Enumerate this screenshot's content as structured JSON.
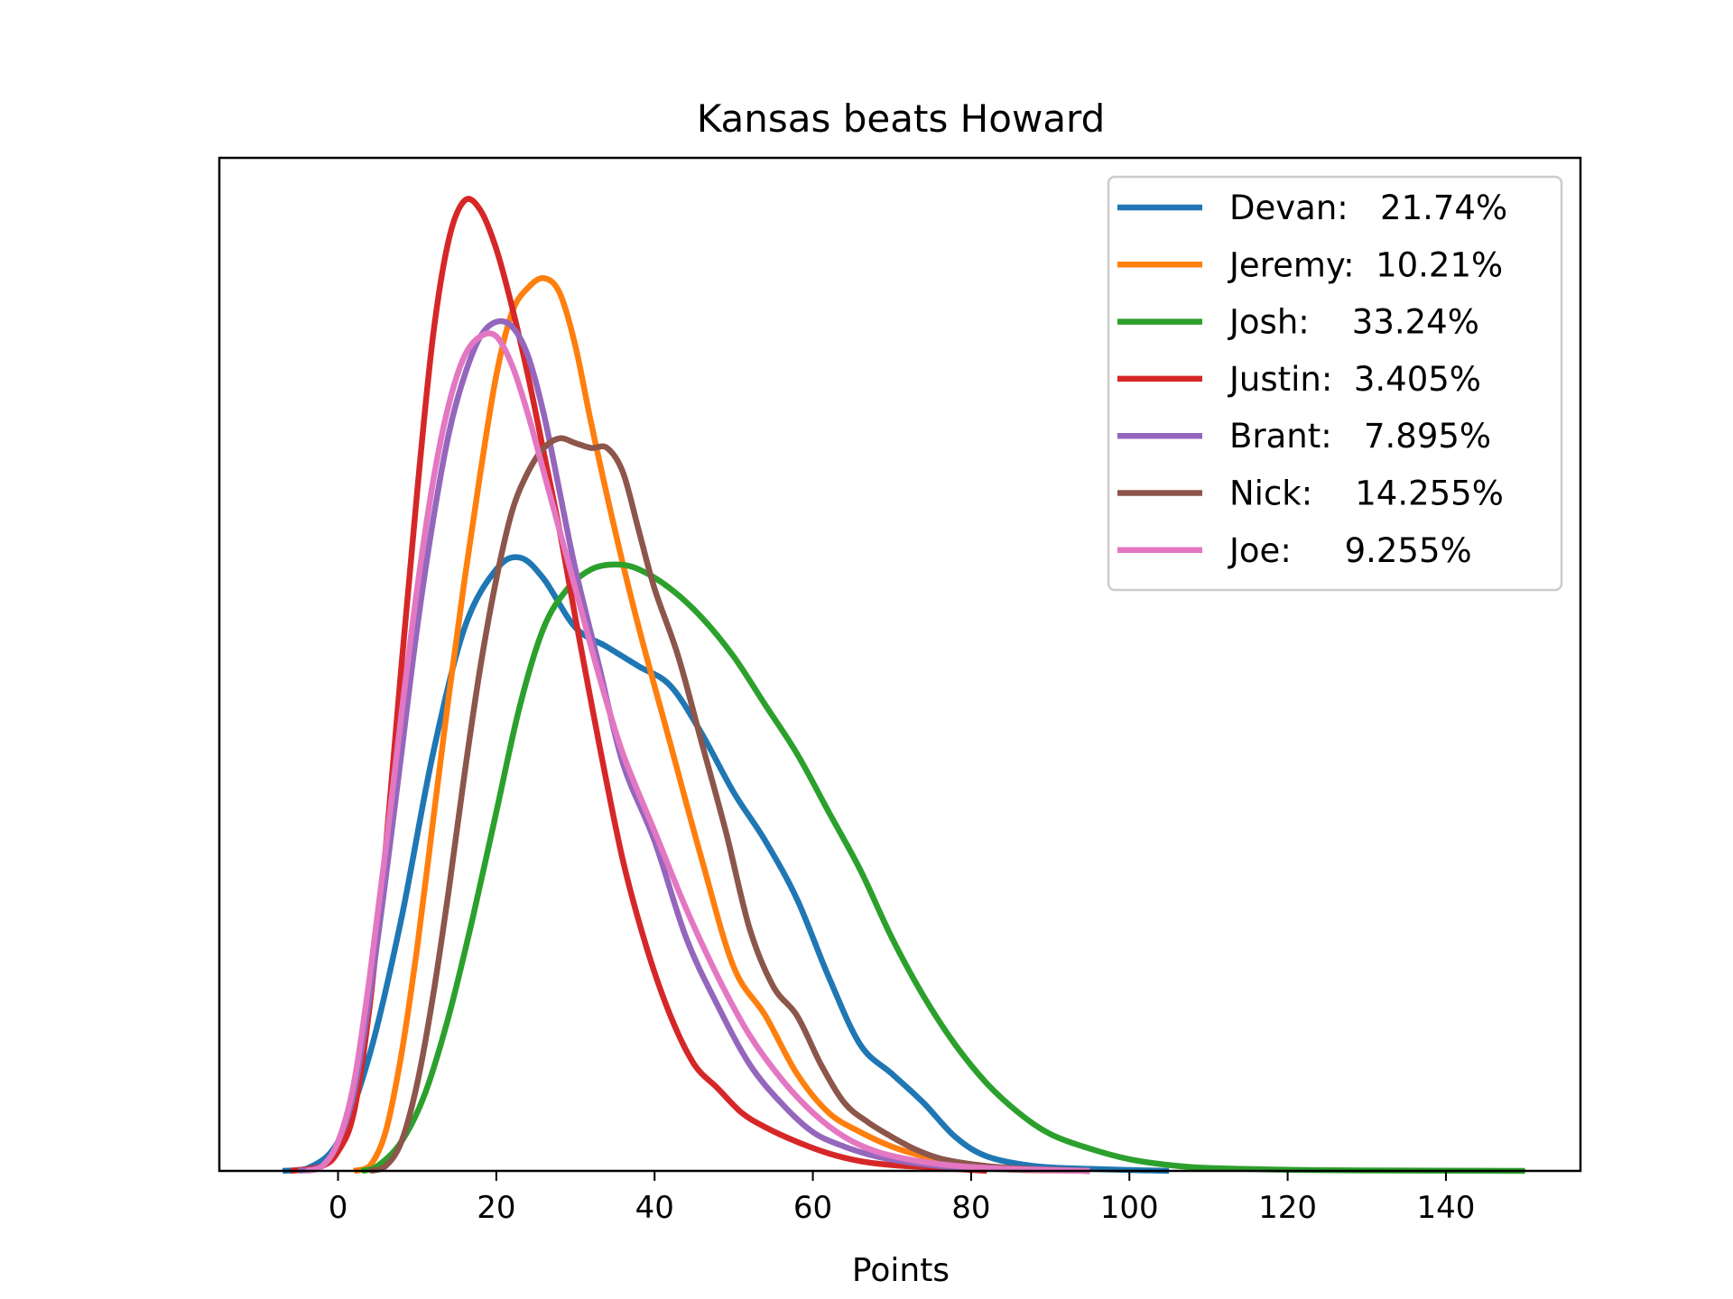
{
  "chart_data": {
    "type": "line",
    "title": "Kansas beats Howard",
    "xlabel": "Points",
    "ylabel": "",
    "xlim": [
      -15,
      157
    ],
    "ylim": [
      0,
      1.0
    ],
    "xticks": [
      0,
      20,
      40,
      60,
      80,
      100,
      120,
      140
    ],
    "yticks_shown": false,
    "grid": false,
    "legend_position": "top-right",
    "series": [
      {
        "name": "Devan:   21.74%",
        "color": "#1f77b4",
        "x": [
          -7,
          -4,
          0,
          4,
          8,
          12,
          16,
          20,
          23,
          26,
          30,
          34,
          38,
          42,
          46,
          50,
          54,
          58,
          62,
          66,
          70,
          74,
          78,
          82,
          88,
          95,
          105
        ],
        "y": [
          0.0,
          0.002,
          0.03,
          0.12,
          0.26,
          0.43,
          0.56,
          0.62,
          0.632,
          0.61,
          0.56,
          0.54,
          0.52,
          0.5,
          0.45,
          0.39,
          0.34,
          0.28,
          0.2,
          0.13,
          0.1,
          0.07,
          0.035,
          0.015,
          0.005,
          0.002,
          0.0
        ]
      },
      {
        "name": "Jeremy:  10.21%",
        "color": "#ff7f0e",
        "x": [
          2,
          4,
          6,
          8,
          10,
          12,
          14,
          16,
          18,
          20,
          22,
          24,
          26,
          28,
          30,
          32,
          35,
          38,
          42,
          46,
          50,
          54,
          58,
          62,
          66,
          70,
          74,
          78,
          82,
          86,
          90,
          95
        ],
        "y": [
          0.0,
          0.005,
          0.04,
          0.12,
          0.23,
          0.36,
          0.49,
          0.61,
          0.72,
          0.82,
          0.885,
          0.91,
          0.92,
          0.905,
          0.85,
          0.77,
          0.66,
          0.56,
          0.44,
          0.32,
          0.21,
          0.16,
          0.1,
          0.06,
          0.04,
          0.025,
          0.015,
          0.008,
          0.003,
          0.001,
          0.0005,
          0.0
        ]
      },
      {
        "name": "Josh:    33.24%",
        "color": "#2ca02c",
        "x": [
          3,
          5,
          8,
          11,
          14,
          17,
          20,
          23,
          26,
          29,
          32,
          35,
          38,
          42,
          46,
          50,
          54,
          58,
          62,
          66,
          70,
          74,
          78,
          82,
          86,
          90,
          95,
          100,
          105,
          110,
          120,
          130,
          150
        ],
        "y": [
          0.0,
          0.005,
          0.03,
          0.08,
          0.16,
          0.26,
          0.37,
          0.48,
          0.56,
          0.6,
          0.62,
          0.625,
          0.62,
          0.6,
          0.57,
          0.53,
          0.48,
          0.43,
          0.37,
          0.31,
          0.24,
          0.18,
          0.13,
          0.09,
          0.06,
          0.038,
          0.023,
          0.012,
          0.006,
          0.003,
          0.0012,
          0.0005,
          0.0
        ]
      },
      {
        "name": "Justin:  3.405%",
        "color": "#d62728",
        "x": [
          -6,
          -2,
          0,
          2,
          4,
          6,
          8,
          10,
          12,
          14,
          16,
          18,
          20,
          22,
          24,
          26,
          28,
          30,
          33,
          36,
          39,
          42,
          45,
          48,
          51,
          54,
          58,
          62,
          66,
          70,
          74,
          78,
          82
        ],
        "y": [
          0.0,
          0.005,
          0.02,
          0.06,
          0.17,
          0.33,
          0.52,
          0.7,
          0.86,
          0.96,
          1.0,
          0.99,
          0.95,
          0.89,
          0.82,
          0.74,
          0.66,
          0.57,
          0.44,
          0.32,
          0.23,
          0.16,
          0.11,
          0.085,
          0.06,
          0.045,
          0.03,
          0.018,
          0.01,
          0.006,
          0.004,
          0.002,
          0.0
        ]
      },
      {
        "name": "Brant:   7.895%",
        "color": "#9467bd",
        "x": [
          -5,
          -2,
          0,
          2,
          4,
          6,
          8,
          10,
          12,
          14,
          16,
          18,
          20,
          22,
          24,
          26,
          28,
          30,
          33,
          36,
          40,
          44,
          48,
          52,
          56,
          60,
          64,
          68,
          72,
          76,
          80,
          85,
          95
        ],
        "y": [
          0.0,
          0.005,
          0.03,
          0.08,
          0.18,
          0.3,
          0.43,
          0.56,
          0.67,
          0.76,
          0.82,
          0.86,
          0.875,
          0.87,
          0.84,
          0.78,
          0.7,
          0.62,
          0.52,
          0.42,
          0.34,
          0.24,
          0.17,
          0.11,
          0.07,
          0.04,
          0.025,
          0.015,
          0.009,
          0.005,
          0.003,
          0.0015,
          0.0
        ]
      },
      {
        "name": "Nick:    14.255%",
        "color": "#8c564b",
        "x": [
          4,
          6,
          8,
          10,
          12,
          14,
          16,
          18,
          20,
          22,
          24,
          26,
          28,
          30,
          32,
          34,
          36,
          38,
          40,
          43,
          46,
          49,
          52,
          55,
          58,
          61,
          64,
          67,
          70,
          73,
          76,
          80,
          85,
          95
        ],
        "y": [
          0.0,
          0.005,
          0.03,
          0.09,
          0.18,
          0.29,
          0.41,
          0.52,
          0.61,
          0.68,
          0.72,
          0.745,
          0.755,
          0.75,
          0.745,
          0.745,
          0.72,
          0.66,
          0.6,
          0.53,
          0.44,
          0.35,
          0.25,
          0.19,
          0.16,
          0.11,
          0.07,
          0.05,
          0.035,
          0.022,
          0.013,
          0.007,
          0.003,
          0.0
        ]
      },
      {
        "name": "Joe:     9.255%",
        "color": "#e377c2",
        "x": [
          -4,
          -2,
          0,
          2,
          4,
          6,
          8,
          10,
          12,
          14,
          16,
          18,
          20,
          22,
          24,
          26,
          28,
          30,
          33,
          36,
          40,
          44,
          48,
          52,
          56,
          60,
          64,
          68,
          72,
          76,
          80,
          85,
          95
        ],
        "y": [
          0.0,
          0.005,
          0.03,
          0.09,
          0.2,
          0.33,
          0.47,
          0.6,
          0.71,
          0.79,
          0.84,
          0.86,
          0.86,
          0.83,
          0.78,
          0.72,
          0.66,
          0.6,
          0.51,
          0.43,
          0.35,
          0.27,
          0.2,
          0.14,
          0.095,
          0.06,
          0.035,
          0.02,
          0.012,
          0.007,
          0.004,
          0.002,
          0.0
        ]
      }
    ]
  }
}
